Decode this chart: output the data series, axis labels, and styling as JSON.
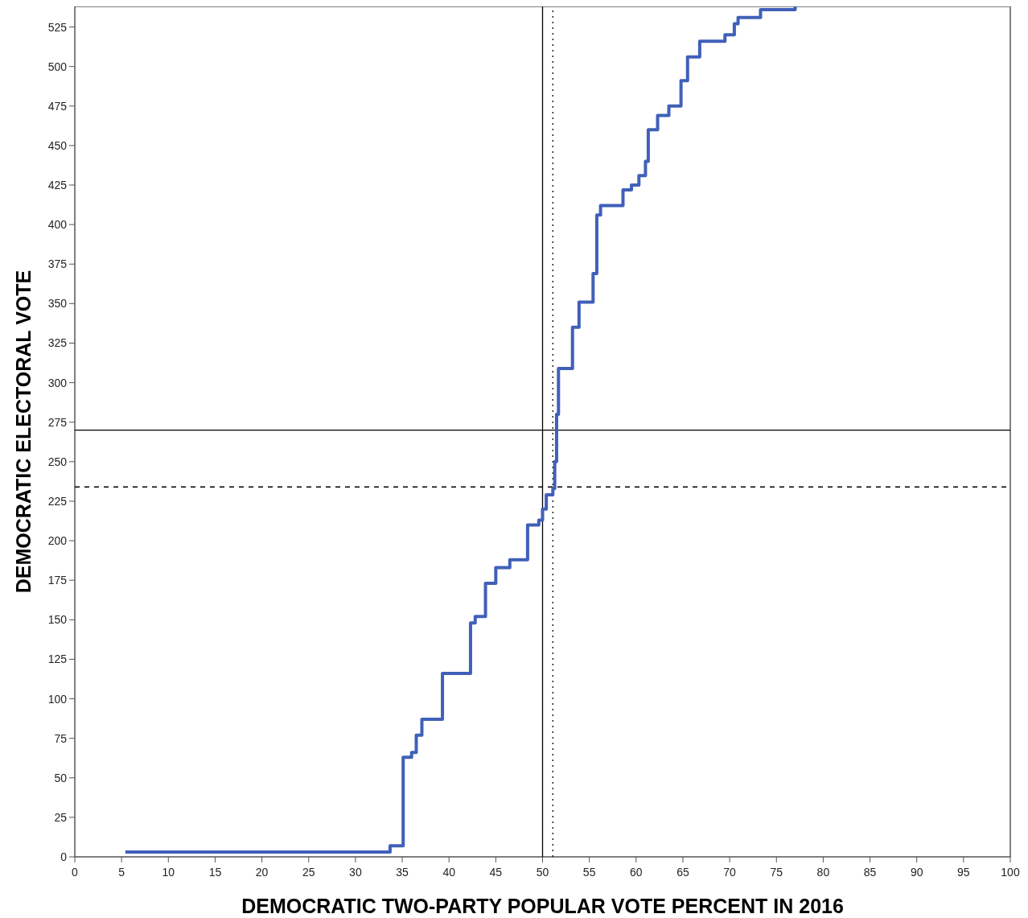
{
  "chart_data": {
    "type": "step",
    "xlabel": "DEMOCRATIC TWO-PARTY POPULAR VOTE PERCENT IN 2016",
    "ylabel": "DEMOCRATIC ELECTORAL VOTE",
    "x": [
      5.4,
      33.7,
      35.1,
      36.0,
      36.5,
      37.1,
      39.3,
      42.3,
      42.8,
      43.9,
      45.0,
      46.5,
      48.4,
      49.6,
      50.0,
      50.4,
      51.1,
      51.3,
      51.5,
      51.7,
      53.2,
      53.9,
      55.4,
      55.8,
      56.2,
      58.6,
      59.5,
      60.3,
      61.0,
      61.3,
      62.3,
      63.5,
      64.8,
      65.5,
      66.8,
      69.5,
      70.5,
      70.9,
      73.3,
      77.0
    ],
    "series": [
      {
        "color": "#4060b8",
        "values": [
          3,
          7,
          63,
          66,
          77,
          87,
          116,
          148,
          152,
          173,
          183,
          188,
          210,
          213,
          220,
          229,
          233,
          250,
          280,
          309,
          335,
          351,
          369,
          406,
          412,
          422,
          425,
          431,
          440,
          460,
          469,
          475,
          491,
          506,
          516,
          520,
          527,
          531,
          536,
          538
        ]
      }
    ],
    "xlim": [
      0,
      100
    ],
    "ylim": [
      0,
      538
    ],
    "xticks": [
      0,
      5,
      10,
      15,
      20,
      25,
      30,
      35,
      40,
      45,
      50,
      55,
      60,
      65,
      70,
      75,
      80,
      85,
      90,
      95,
      100
    ],
    "yticks": [
      0,
      25,
      50,
      75,
      100,
      125,
      150,
      175,
      200,
      225,
      250,
      275,
      300,
      325,
      350,
      375,
      400,
      425,
      450,
      475,
      500,
      525
    ],
    "ref_lines": [
      {
        "axis": "x",
        "value": 50,
        "color": "#000000",
        "line_style": "solid"
      },
      {
        "axis": "x",
        "value": 51.1,
        "color": "#000000",
        "line_style": "dotted"
      },
      {
        "axis": "y",
        "value": 270,
        "color": "#000000",
        "line_style": "solid"
      },
      {
        "axis": "y",
        "value": 234,
        "color": "#000000",
        "line_style": "dashed"
      }
    ],
    "grid": false
  }
}
